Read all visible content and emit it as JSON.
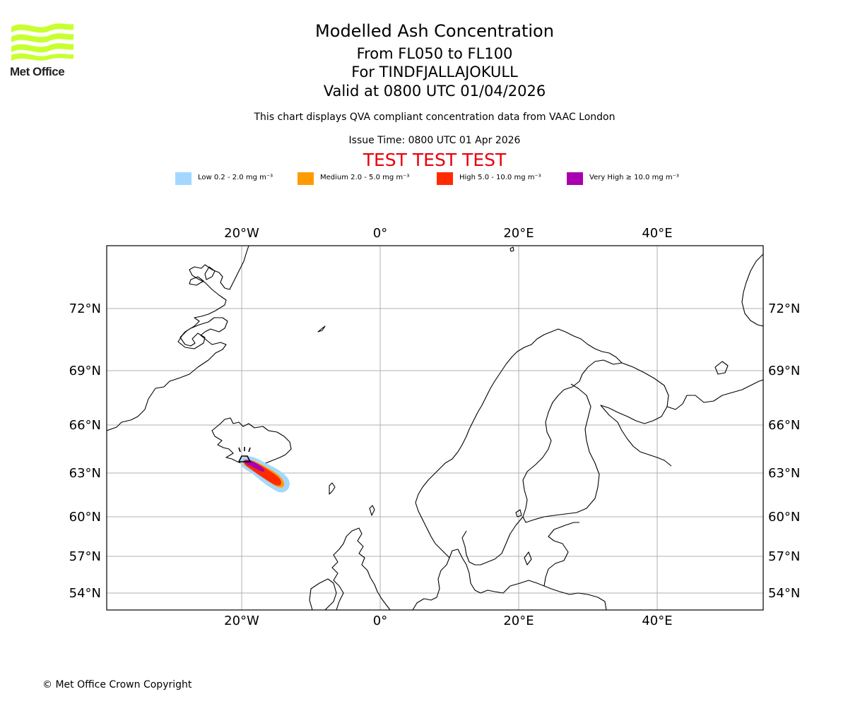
{
  "logo": {
    "text": "Met Office",
    "color": "#c8ff2e"
  },
  "header": {
    "title": "Modelled Ash Concentration",
    "levels": "From FL050 to FL100",
    "volcano": "For TINDFJALLAJOKULL",
    "valid": "Valid at 0800 UTC 01/04/2026",
    "description": "This chart displays QVA compliant concentration data from VAAC London",
    "issue_time": "Issue Time: 0800 UTC 01 Apr 2026",
    "test_banner": "TEST TEST TEST"
  },
  "legend": [
    {
      "label": "Low 0.2 - 2.0 mg m⁻³",
      "color": "#a3d7ff"
    },
    {
      "label": "Medium 2.0 - 5.0 mg m⁻³",
      "color": "#ff9b00"
    },
    {
      "label": "High 5.0 - 10.0 mg m⁻³",
      "color": "#ff2a00"
    },
    {
      "label": "Very High ≥ 10.0 mg m⁻³",
      "color": "#a800b0"
    }
  ],
  "map": {
    "longitude_ticks": [
      "20°W",
      "0°",
      "20°E",
      "40°E"
    ],
    "latitude_ticks": [
      "72°N",
      "69°N",
      "66°N",
      "63°N",
      "60°N",
      "57°N",
      "54°N"
    ],
    "volcano_marker": "volcano-icon"
  },
  "footer": {
    "copyright": "© Met Office Crown Copyright"
  }
}
